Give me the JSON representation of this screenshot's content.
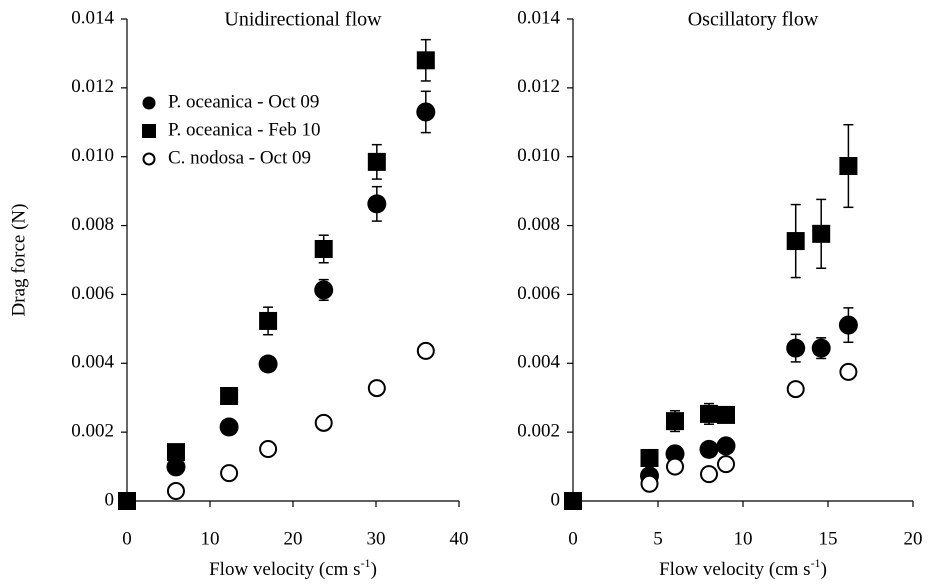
{
  "chart_data": [
    {
      "type": "scatter",
      "title": "Unidirectional flow",
      "y_label": "Drag force (N)",
      "x_label": [
        "Flow velocity (cm s",
        "-1",
        ")"
      ],
      "xlim": [
        0,
        40
      ],
      "xticks": [
        0,
        10,
        20,
        30,
        40
      ],
      "ylim": [
        0,
        0.014
      ],
      "yticks": [
        0,
        0.002,
        0.004,
        0.006,
        0.008,
        {
          "value": 0.01,
          "label": "0.010"
        },
        0.012,
        0.014
      ],
      "legend": "upper left",
      "series": [
        {
          "name": "P. oceanica - Oct 09",
          "marker": "circle",
          "color": "#000000",
          "x": [
            5.9,
            12.3,
            17,
            23.7,
            30.1,
            36
          ],
          "values": [
            0.00099,
            0.00215,
            0.00398,
            0.00613,
            0.00863,
            0.0113
          ],
          "errors": [
            0.0001,
            0.0001,
            0.0001,
            0.0003,
            0.0005,
            0.0006
          ]
        },
        {
          "name": "P. oceanica - Feb 10",
          "marker": "square",
          "color": "#000000",
          "x": [
            0,
            5.9,
            12.3,
            17,
            23.7,
            30.1,
            36
          ],
          "values": [
            0,
            0.00142,
            0.00305,
            0.00523,
            0.00732,
            0.00985,
            0.0128
          ],
          "errors": [
            0,
            0.0001,
            0.0001,
            0.0004,
            0.0004,
            0.0005,
            0.0006
          ]
        },
        {
          "name": "C. nodosa - Oct 09",
          "marker": "open-circle",
          "color": "#000000",
          "x": [
            5.9,
            12.3,
            17,
            23.7,
            30.1,
            36
          ],
          "values": [
            0.00029,
            0.00081,
            0.00151,
            0.00227,
            0.00328,
            0.00436
          ],
          "errors": [
            0.0001,
            0.0001,
            0.0001,
            0.0001,
            0.0001,
            0.0001
          ]
        }
      ]
    },
    {
      "type": "scatter",
      "title": "Oscillatory flow",
      "x_label": [
        "Flow velocity (cm s",
        "-1",
        ")"
      ],
      "xlim": [
        0,
        20
      ],
      "xticks": [
        0,
        5,
        10,
        15,
        20
      ],
      "ylim": [
        0,
        0.014
      ],
      "yticks": [
        0,
        0.002,
        0.004,
        0.006,
        0.008,
        {
          "value": 0.01,
          "label": "0.010"
        },
        0.012,
        0.014
      ],
      "series": [
        {
          "marker": "circle",
          "color": "#000000",
          "x": [
            4.5,
            6,
            8,
            9,
            13.1,
            14.6,
            16.2
          ],
          "values": [
            0.00073,
            0.00137,
            0.0015,
            0.0016,
            0.00444,
            0.00444,
            0.00511
          ],
          "errors": [
            0.0001,
            0.0001,
            0.0001,
            0.0001,
            0.0004,
            0.0003,
            0.0005
          ]
        },
        {
          "marker": "square",
          "color": "#000000",
          "x": [
            0,
            4.5,
            6,
            8,
            9,
            13.1,
            14.6,
            16.2
          ],
          "values": [
            0,
            0.00125,
            0.00232,
            0.00253,
            0.0025,
            0.00755,
            0.00776,
            0.00973
          ],
          "errors": [
            0,
            0.0001,
            0.0003,
            0.0003,
            0.0002,
            0.00106,
            0.001,
            0.0012
          ]
        },
        {
          "marker": "open-circle",
          "color": "#000000",
          "x": [
            4.5,
            6,
            8,
            9,
            13.1,
            16.2
          ],
          "values": [
            0.0005,
            0.001,
            0.00078,
            0.00107,
            0.00325,
            0.00375
          ],
          "errors": [
            0.0001,
            0.0001,
            0.0001,
            0.0001,
            0.0001,
            0.0001
          ]
        }
      ]
    }
  ]
}
